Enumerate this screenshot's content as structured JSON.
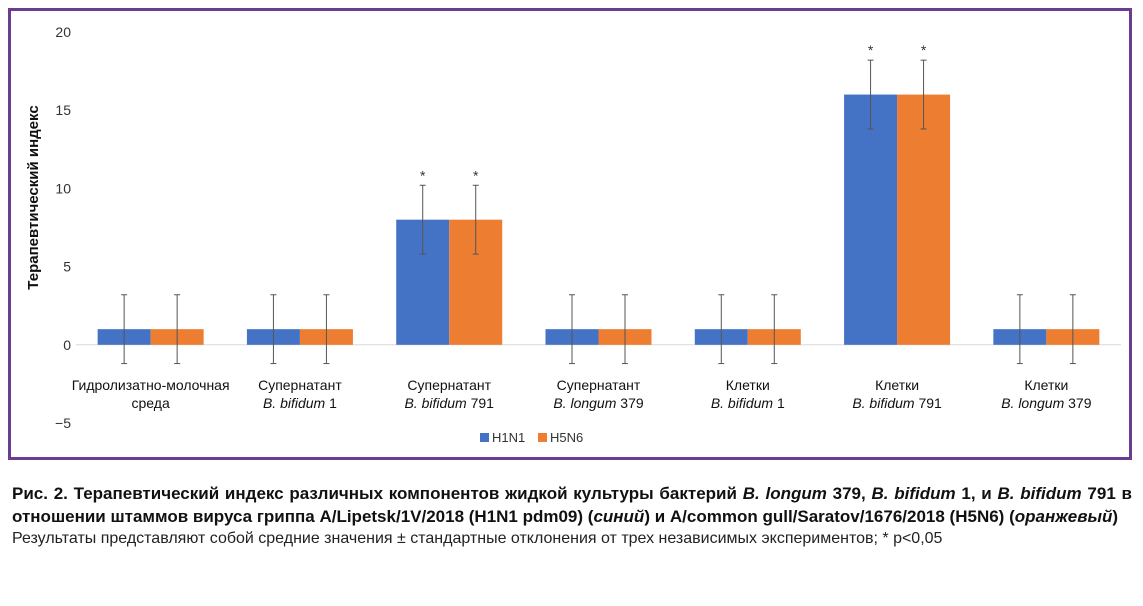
{
  "chart_data": {
    "type": "bar",
    "ylabel": "Терапевтический индекс",
    "ylim": [
      -5,
      20
    ],
    "yticks": [
      -5,
      0,
      5,
      10,
      15,
      20
    ],
    "ytick_labels": [
      "−5",
      "0",
      "5",
      "10",
      "15",
      "20"
    ],
    "grid": false,
    "legend_position": "bottom-center",
    "categories": [
      {
        "line1": "Гидролизатно-молочная",
        "line2": "среда",
        "line2_italic": "",
        "line2_suffix": ""
      },
      {
        "line1": "Супернатант",
        "line2": "",
        "line2_italic": "B. bifidum",
        "line2_suffix": " 1"
      },
      {
        "line1": "Супернатант",
        "line2": "",
        "line2_italic": "B. bifidum",
        "line2_suffix": " 791"
      },
      {
        "line1": "Супернатант",
        "line2": "",
        "line2_italic": "B. longum",
        "line2_suffix": " 379"
      },
      {
        "line1": "Клетки",
        "line2": "",
        "line2_italic": "B. bifidum",
        "line2_suffix": " 1"
      },
      {
        "line1": "Клетки",
        "line2": "",
        "line2_italic": "B. bifidum",
        "line2_suffix": " 791"
      },
      {
        "line1": "Клетки",
        "line2": "",
        "line2_italic": "B. longum",
        "line2_suffix": " 379"
      }
    ],
    "series": [
      {
        "name": "H1N1",
        "color": "#4472c4",
        "values": [
          1,
          1,
          8,
          1,
          1,
          16,
          1
        ],
        "errors": [
          2.2,
          2.2,
          2.2,
          2.2,
          2.2,
          2.2,
          2.2
        ],
        "significant": [
          false,
          false,
          true,
          false,
          false,
          true,
          false
        ]
      },
      {
        "name": "H5N6",
        "color": "#ed7d31",
        "values": [
          1,
          1,
          8,
          1,
          1,
          16,
          1
        ],
        "errors": [
          2.2,
          2.2,
          2.2,
          2.2,
          2.2,
          2.2,
          2.2
        ],
        "significant": [
          false,
          false,
          true,
          false,
          false,
          true,
          false
        ]
      }
    ],
    "significance_marker": "*"
  },
  "caption": {
    "title_parts": [
      {
        "t": "Рис. 2. Терапевтический индекс различных компонентов жидкой культуры бактерий ",
        "i": false
      },
      {
        "t": "B. longum",
        "i": true
      },
      {
        "t": " 379, ",
        "i": false
      },
      {
        "t": "B. bifidum",
        "i": true
      },
      {
        "t": " 1, и ",
        "i": false
      },
      {
        "t": "B. bifidum",
        "i": true
      },
      {
        "t": " 791 в отношении штаммов вируса гриппа A/Lipetsk/1V/2018 (H1N1 pdm09) (",
        "i": false
      },
      {
        "t": "синий",
        "i": true
      },
      {
        "t": ") и A/common gull/Saratov/1676/2018 (H5N6) (",
        "i": false
      },
      {
        "t": "оранжевый",
        "i": true
      },
      {
        "t": ")",
        "i": false
      }
    ],
    "note": "Результаты представляют собой средние значения ± стандартные отклонения от трех независимых экспериментов; * p<0,05"
  }
}
